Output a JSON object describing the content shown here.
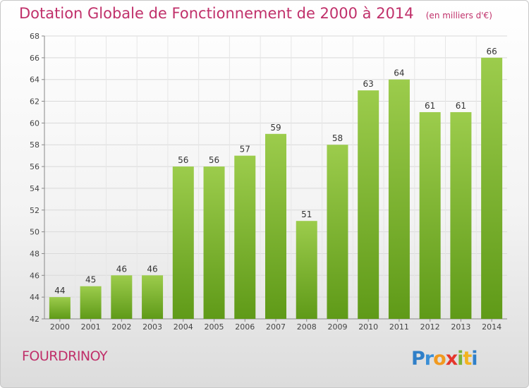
{
  "header": {
    "title": "Dotation Globale de Fonctionnement de 2000 à 2014",
    "subtitle": "(en milliers d'€)"
  },
  "footer": {
    "commune": "FOURDRINOY",
    "logo_text": "Proxiti"
  },
  "colors": {
    "title": "#c0306a",
    "bar_top": "#9ccc4c",
    "bar_bottom": "#5f9a18",
    "grid": "#d9d9d9"
  },
  "chart_data": {
    "type": "bar",
    "title": "Dotation Globale de Fonctionnement de 2000 à 2014",
    "subtitle": "(en milliers d'€)",
    "xlabel": "",
    "ylabel": "",
    "categories": [
      "2000",
      "2001",
      "2002",
      "2003",
      "2004",
      "2005",
      "2006",
      "2007",
      "2008",
      "2009",
      "2010",
      "2011",
      "2012",
      "2013",
      "2014"
    ],
    "values": [
      44,
      45,
      46,
      46,
      56,
      56,
      57,
      59,
      51,
      58,
      63,
      64,
      61,
      61,
      66
    ],
    "ylim": [
      42,
      68
    ],
    "yticks": [
      42,
      44,
      46,
      48,
      50,
      52,
      54,
      56,
      58,
      60,
      62,
      64,
      66,
      68
    ],
    "grid": true,
    "legend": "none",
    "data_labels": true
  }
}
